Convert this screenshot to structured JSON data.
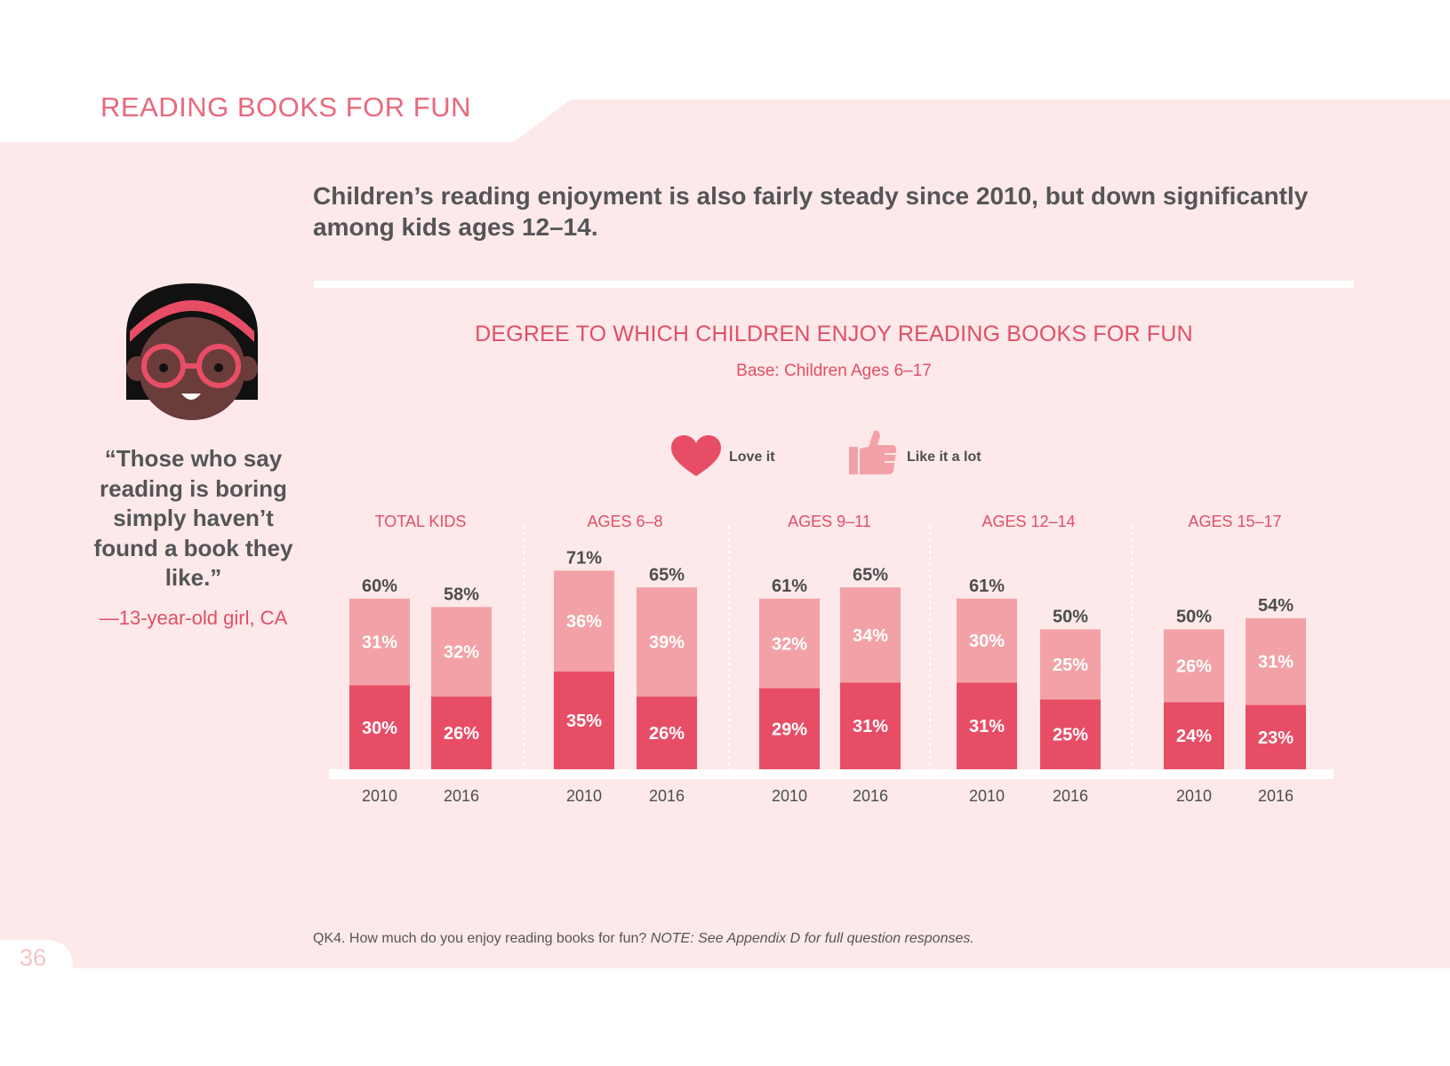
{
  "page": {
    "section_title": "READING BOOKS FOR FUN",
    "headline": "Children’s reading enjoyment is also fairly steady since 2010, but down significantly among kids ages 12–14.",
    "quote": "“Those who say reading is boring simply haven’t found a book they like.”",
    "quote_attribution": "—13-year-old girl, CA",
    "footnote_main": "QK4. How much do you enjoy reading books for fun? ",
    "footnote_note": "NOTE: See Appendix D for full question responses.",
    "page_number": "36",
    "colors": {
      "background": "#fde9e9",
      "love_it": "#e84d66",
      "like_it_a_lot": "#f2a2a6",
      "accent": "#e14f67"
    }
  },
  "legend": [
    {
      "label": "Love it",
      "icon": "heart-icon"
    },
    {
      "label": "Like it a lot",
      "icon": "thumbs-up-icon"
    }
  ],
  "chart_data": {
    "type": "bar",
    "stacked": true,
    "title": "DEGREE TO WHICH CHILDREN ENJOY READING BOOKS FOR FUN",
    "subtitle": "Base: Children Ages 6–17",
    "groups": [
      "TOTAL KIDS",
      "AGES 6–8",
      "AGES 9–11",
      "AGES 12–14",
      "AGES 15–17"
    ],
    "categories": [
      "2010",
      "2016"
    ],
    "series": [
      {
        "name": "Love it",
        "values": [
          [
            30,
            26
          ],
          [
            35,
            26
          ],
          [
            29,
            31
          ],
          [
            31,
            25
          ],
          [
            24,
            23
          ]
        ]
      },
      {
        "name": "Like it a lot",
        "values": [
          [
            31,
            32
          ],
          [
            36,
            39
          ],
          [
            32,
            34
          ],
          [
            30,
            25
          ],
          [
            26,
            31
          ]
        ]
      }
    ],
    "totals": [
      [
        60,
        58
      ],
      [
        71,
        65
      ],
      [
        61,
        65
      ],
      [
        61,
        50
      ],
      [
        50,
        54
      ]
    ],
    "unit": "%"
  }
}
